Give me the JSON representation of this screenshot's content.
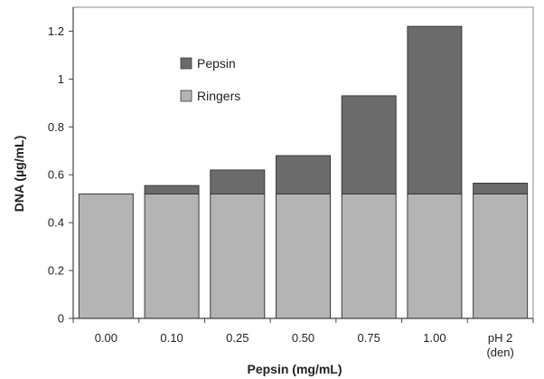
{
  "chart_data": {
    "type": "bar",
    "stacked": true,
    "categories": [
      "0.00",
      "0.10",
      "0.25",
      "0.50",
      "0.75",
      "1.00",
      "pH 2\n(den)"
    ],
    "series": [
      {
        "name": "Ringers",
        "values": [
          0.52,
          0.52,
          0.52,
          0.52,
          0.52,
          0.52,
          0.52
        ]
      },
      {
        "name": "Pepsin",
        "values": [
          0.0,
          0.035,
          0.1,
          0.16,
          0.41,
          0.7,
          0.045
        ]
      }
    ],
    "title": "",
    "xlabel": "Pepsin (mg/mL)",
    "ylabel": "DNA (µg/mL)",
    "ylim": [
      0,
      1.3
    ],
    "yticks": [
      "0",
      "0.2",
      "0.4",
      "0.6",
      "0.8",
      "1",
      "1.2"
    ],
    "grid": false,
    "legend_position": "top-left",
    "colors": {
      "Ringers": "#b4b4b4",
      "Pepsin": "#6b6b6b",
      "outline": "#3a3a3a"
    }
  }
}
